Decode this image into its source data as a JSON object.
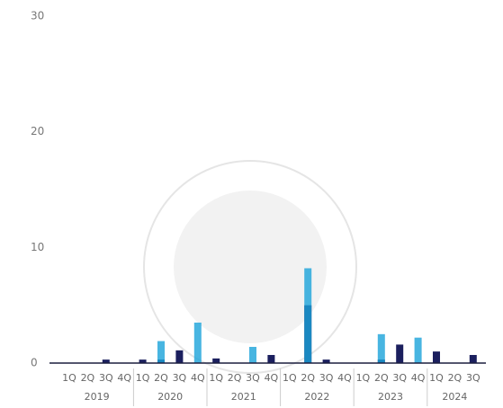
{
  "chart_data": {
    "type": "bar",
    "categories": [
      "1Q",
      "2Q",
      "3Q",
      "4Q",
      "1Q",
      "2Q",
      "3Q",
      "4Q",
      "1Q",
      "2Q",
      "3Q",
      "4Q",
      "1Q",
      "2Q",
      "3Q",
      "4Q",
      "1Q",
      "2Q",
      "3Q",
      "4Q",
      "1Q",
      "2Q",
      "3Q"
    ],
    "years": [
      "2019",
      "2020",
      "2021",
      "2022",
      "2023",
      "2024"
    ],
    "series": [
      {
        "color": "#1b1f5e",
        "values": [
          0,
          0,
          0.3,
          0,
          0.3,
          0.3,
          1.1,
          0,
          0.4,
          0,
          0,
          0.7,
          0,
          5.0,
          0.3,
          0,
          0,
          0.3,
          1.6,
          0,
          1.0,
          0,
          0.7
        ]
      },
      {
        "color": "#1aa3d9",
        "values": [
          0,
          0,
          0,
          0,
          0,
          1.9,
          0,
          3.5,
          0,
          0,
          1.4,
          0,
          0,
          8.2,
          0,
          0,
          0,
          2.5,
          0,
          2.2,
          0,
          0,
          0
        ]
      }
    ],
    "ylim": [
      0,
      30
    ],
    "yticks": [
      0,
      10,
      20,
      30
    ],
    "grid": false
  }
}
